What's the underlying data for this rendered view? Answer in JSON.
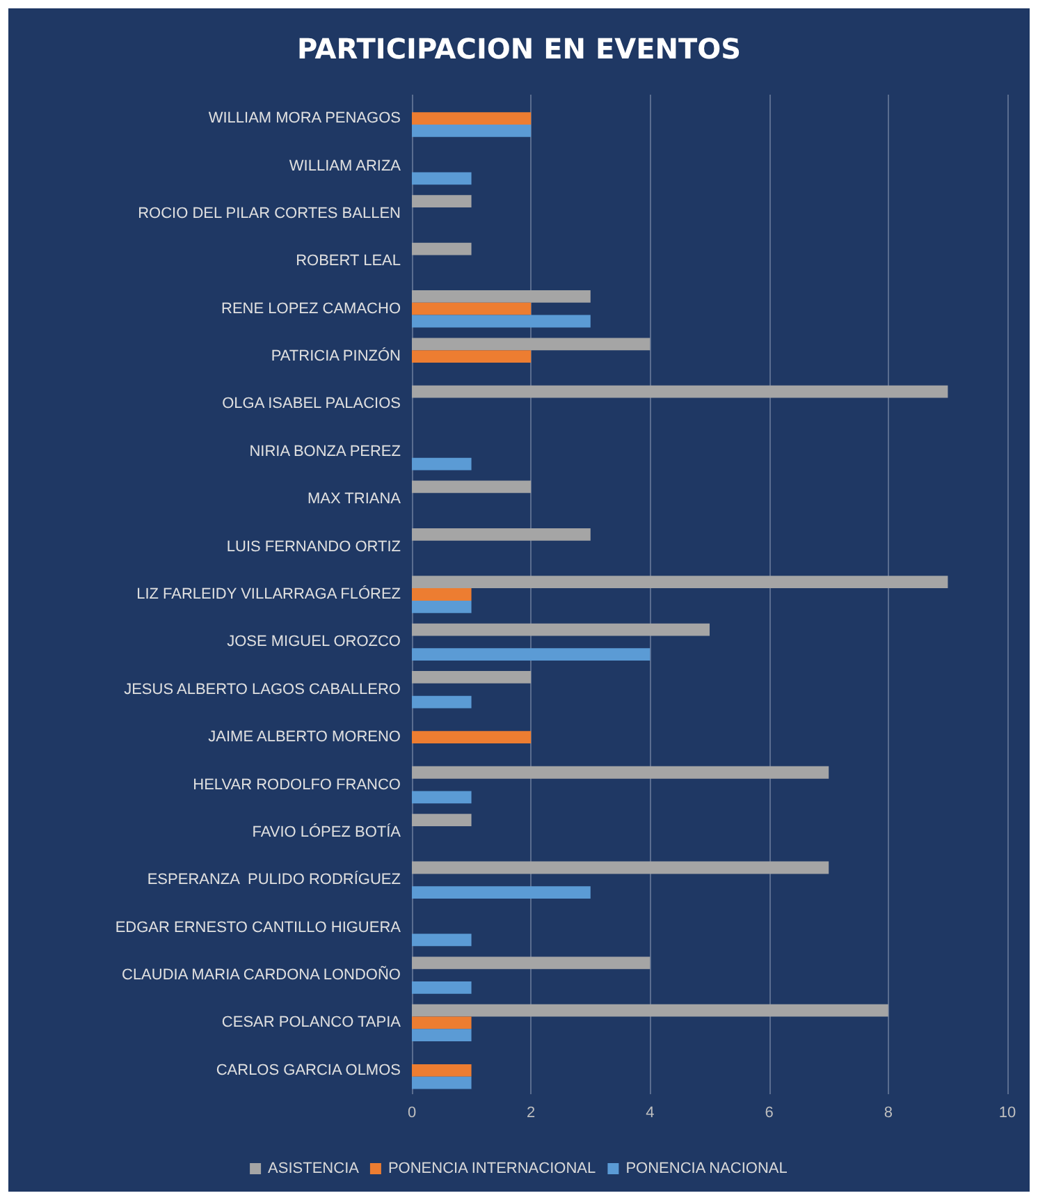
{
  "chart_data": {
    "type": "bar",
    "orientation": "horizontal",
    "title": "PARTICIPACION EN EVENTOS",
    "categories": [
      "WILLIAM MORA PENAGOS",
      "WILLIAM ARIZA",
      "ROCIO DEL PILAR CORTES BALLEN",
      "ROBERT LEAL",
      "RENE LOPEZ CAMACHO",
      "PATRICIA PINZÓN",
      "OLGA ISABEL PALACIOS",
      "NIRIA BONZA PEREZ",
      "MAX TRIANA",
      "LUIS FERNANDO ORTIZ",
      "LIZ FARLEIDY VILLARRAGA FLÓREZ",
      "JOSE MIGUEL OROZCO",
      "JESUS ALBERTO LAGOS CABALLERO",
      "JAIME ALBERTO MORENO",
      "HELVAR RODOLFO FRANCO",
      "FAVIO LÓPEZ BOTÍA",
      "ESPERANZA  PULIDO RODRÍGUEZ",
      "EDGAR ERNESTO CANTILLO HIGUERA",
      "CLAUDIA MARIA CARDONA LONDOÑO",
      "CESAR POLANCO TAPIA",
      "CARLOS GARCIA OLMOS"
    ],
    "series": [
      {
        "name": "ASISTENCIA",
        "color": "#a5a5a5",
        "values": [
          null,
          null,
          1,
          1,
          3,
          4,
          9,
          null,
          2,
          3,
          9,
          5,
          2,
          null,
          7,
          1,
          7,
          null,
          4,
          8,
          null
        ]
      },
      {
        "name": "PONENCIA INTERNACIONAL",
        "color": "#ed7d31",
        "values": [
          2,
          null,
          null,
          null,
          2,
          2,
          null,
          null,
          null,
          null,
          1,
          null,
          null,
          2,
          null,
          null,
          null,
          null,
          null,
          1,
          1
        ]
      },
      {
        "name": "PONENCIA NACIONAL",
        "color": "#5b9bd5",
        "values": [
          2,
          1,
          null,
          null,
          3,
          null,
          null,
          1,
          null,
          null,
          1,
          4,
          1,
          null,
          1,
          null,
          3,
          1,
          1,
          1,
          1
        ]
      }
    ],
    "xlim": [
      0,
      10
    ],
    "xticks": [
      0,
      2,
      4,
      6,
      8,
      10
    ],
    "grid": "x",
    "legend": "bottom"
  }
}
